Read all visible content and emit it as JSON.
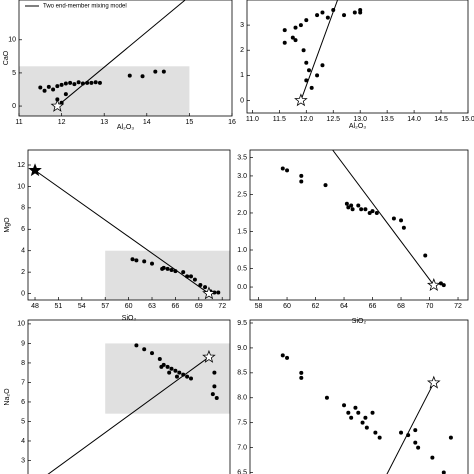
{
  "chart_data": [
    {
      "type": "scatter",
      "x_label": "Al₂O₃",
      "y_label": "CaO",
      "line_label": "Two end-member mixing model",
      "xlim": [
        11,
        16
      ],
      "ylim": [
        -1.5,
        16
      ],
      "xticks": [
        11,
        12,
        13,
        14,
        15,
        16
      ],
      "yticks": [
        0,
        5,
        10
      ],
      "highlight": {
        "xlim": [
          11,
          15
        ],
        "ylim": [
          -1.5,
          6
        ]
      },
      "mixing_line": {
        "x": [
          11.9,
          14.9
        ],
        "values": [
          0,
          16
        ]
      },
      "end_members": {
        "x": [
          11.9
        ],
        "values": [
          0
        ],
        "filled": [
          false
        ]
      },
      "x": [
        11.5,
        11.6,
        11.7,
        11.8,
        11.9,
        12.0,
        12.1,
        12.2,
        12.3,
        12.4,
        12.5,
        12.6,
        12.7,
        12.8,
        12.9,
        11.9,
        12.0,
        12.1,
        13.6,
        13.9,
        14.2,
        14.4
      ],
      "values": [
        2.8,
        2.3,
        2.9,
        2.5,
        3.0,
        3.2,
        3.4,
        3.5,
        3.3,
        3.6,
        3.4,
        3.5,
        3.5,
        3.6,
        3.5,
        1.0,
        0.5,
        1.8,
        4.6,
        4.5,
        5.2,
        5.2
      ],
      "color": "#000000"
    },
    {
      "type": "scatter",
      "x_label": "Al₂O₃",
      "xlim": [
        10.9,
        15.0
      ],
      "xticks": [
        {
          "value": 11,
          "label": "11.0"
        },
        11.5,
        {
          "value": 12,
          "label": "12.0"
        },
        12.5,
        {
          "value": 13,
          "label": "13.0"
        },
        13.5,
        {
          "value": 14,
          "label": "14.0"
        },
        14.5,
        {
          "value": 15,
          "label": "15.0"
        }
      ],
      "ylim": [
        -0.5,
        4
      ],
      "yticks": [
        0,
        1,
        2,
        3
      ],
      "mixing_line": {
        "x": [
          11.9,
          12.58
        ],
        "values": [
          0,
          4
        ]
      },
      "end_members": {
        "x": [
          11.9
        ],
        "values": [
          0
        ],
        "filled": [
          false
        ]
      },
      "x": [
        11.6,
        11.6,
        11.8,
        11.9,
        11.75,
        11.8,
        11.95,
        12.0,
        12.05,
        12.0,
        12.1,
        12.2,
        12.3,
        12.0,
        12.2,
        12.3,
        12.5,
        12.7,
        12.9,
        13.0,
        13.0,
        12.4
      ],
      "values": [
        2.8,
        2.3,
        2.9,
        3.0,
        2.5,
        2.4,
        2.0,
        1.5,
        1.2,
        0.8,
        0.5,
        1.0,
        1.4,
        3.2,
        3.4,
        3.5,
        3.6,
        3.4,
        3.5,
        3.5,
        3.6,
        3.3
      ],
      "color": "#000000"
    },
    {
      "type": "scatter",
      "x_label": "SiO₂",
      "y_label": "MgO",
      "xlim": [
        47.1,
        73
      ],
      "ylim": [
        -0.6,
        13.4
      ],
      "xticks": [
        48,
        51,
        54,
        57,
        60,
        63,
        66,
        69,
        72
      ],
      "yticks": [
        0,
        2,
        4,
        6,
        8,
        10,
        12
      ],
      "highlight": {
        "xlim": [
          57,
          73
        ],
        "ylim": [
          -0.6,
          4
        ]
      },
      "mixing_line": {
        "x": [
          48,
          70.3
        ],
        "values": [
          11.5,
          0
        ]
      },
      "end_members": {
        "x": [
          48,
          70.3
        ],
        "values": [
          11.5,
          0
        ],
        "filled": [
          true,
          false
        ]
      },
      "x": [
        60.5,
        61,
        62,
        63,
        64.3,
        64.5,
        65,
        65.5,
        66,
        67,
        67.5,
        68,
        68.5,
        69.2,
        69.8,
        70.5,
        71,
        71.5
      ],
      "values": [
        3.2,
        3.1,
        3.0,
        2.8,
        2.3,
        2.4,
        2.3,
        2.2,
        2.1,
        2.0,
        1.6,
        1.6,
        1.3,
        0.8,
        0.6,
        0.2,
        0.1,
        0.1
      ],
      "color": "#000000"
    },
    {
      "type": "scatter",
      "x_label": "SiO₂",
      "xlim": [
        57.4,
        72.7
      ],
      "ylim": [
        -0.35,
        3.7
      ],
      "xticks": [
        58,
        60,
        62,
        64,
        66,
        68,
        70,
        72
      ],
      "yticks": [
        {
          "value": 0,
          "label": "0.0"
        },
        0.5,
        {
          "value": 1,
          "label": "1.0"
        },
        1.5,
        {
          "value": 2,
          "label": "2.0"
        },
        2.5,
        {
          "value": 3,
          "label": "3.0"
        },
        3.5
      ],
      "mixing_line": {
        "x": [
          70.3,
          63.2
        ],
        "values": [
          0.05,
          3.7
        ]
      },
      "end_members": {
        "x": [
          70.3
        ],
        "values": [
          0.05
        ],
        "filled": [
          false
        ]
      },
      "x": [
        59.7,
        60,
        61,
        61,
        62.7,
        64.2,
        64.3,
        64.5,
        64.6,
        65,
        65.2,
        65.5,
        65.8,
        66,
        66.3,
        67.5,
        68,
        68.2,
        69.7,
        70.8,
        71
      ],
      "values": [
        3.2,
        3.15,
        3.0,
        2.85,
        2.75,
        2.25,
        2.15,
        2.2,
        2.1,
        2.2,
        2.1,
        2.1,
        2.0,
        2.05,
        2.0,
        1.85,
        1.8,
        1.6,
        0.85,
        0.1,
        0.05
      ],
      "color": "#000000"
    },
    {
      "type": "scatter",
      "y_label": "Na₂O",
      "xlim": [
        47.1,
        73
      ],
      "ylim": [
        2,
        10.2
      ],
      "yticks": [
        3,
        4,
        5,
        6,
        7,
        8,
        9,
        10
      ],
      "highlight": {
        "xlim": [
          57,
          73
        ],
        "ylim": [
          5.4,
          9
        ]
      },
      "mixing_line": {
        "x": [
          49,
          70.3
        ],
        "values": [
          2.1,
          8.3
        ]
      },
      "end_members": {
        "x": [
          70.3
        ],
        "values": [
          8.3
        ],
        "filled": [
          false
        ]
      },
      "x": [
        61,
        62,
        63,
        64,
        64.5,
        65,
        65.5,
        66,
        66.5,
        67,
        67.5,
        68,
        64.2,
        65.2,
        66.2,
        71,
        71,
        71.3,
        70.8
      ],
      "values": [
        8.9,
        8.7,
        8.5,
        8.2,
        7.9,
        7.8,
        7.7,
        7.6,
        7.5,
        7.4,
        7.3,
        7.2,
        7.8,
        7.5,
        7.3,
        7.5,
        6.8,
        6.2,
        6.4
      ],
      "color": "#000000"
    },
    {
      "type": "scatter",
      "xlim": [
        57.4,
        72.7
      ],
      "ylim": [
        6.35,
        9.56
      ],
      "yticks": [
        6.5,
        {
          "value": 7,
          "label": "7.0"
        },
        7.5,
        {
          "value": 8,
          "label": "8.0"
        },
        8.5,
        {
          "value": 9,
          "label": "9.0"
        },
        9.5
      ],
      "mixing_line": {
        "x": [
          66.8,
          70.3
        ],
        "values": [
          6.35,
          8.3
        ]
      },
      "end_members": {
        "x": [
          70.3
        ],
        "values": [
          8.3
        ],
        "filled": [
          false
        ]
      },
      "x": [
        59.7,
        60,
        61,
        61,
        62.8,
        64,
        64.3,
        64.5,
        64.8,
        65,
        65.3,
        65.5,
        65.6,
        66,
        66.2,
        66.5,
        68,
        68.5,
        69,
        69,
        69.2,
        70.2,
        71.5,
        71
      ],
      "values": [
        8.85,
        8.8,
        8.5,
        8.4,
        8.0,
        7.85,
        7.7,
        7.6,
        7.8,
        7.7,
        7.5,
        7.6,
        7.4,
        7.7,
        7.3,
        7.2,
        7.3,
        7.25,
        7.35,
        7.1,
        7.0,
        6.8,
        7.2,
        6.5
      ],
      "color": "#000000"
    }
  ]
}
